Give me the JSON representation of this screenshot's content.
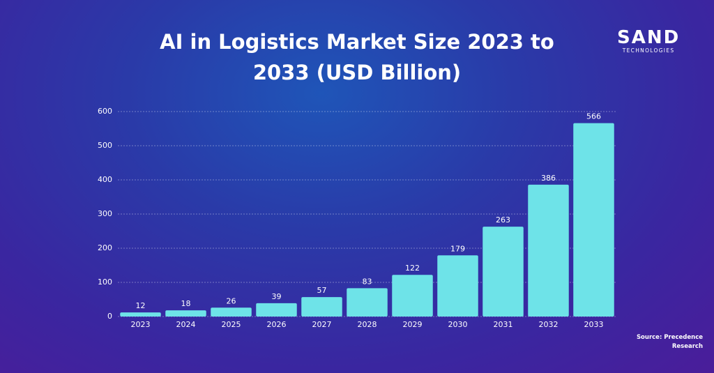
{
  "chart_data": {
    "type": "bar",
    "title": "AI in Logistics Market Size 2023 to 2033  (USD Billion)",
    "categories": [
      "2023",
      "2024",
      "2025",
      "2026",
      "2027",
      "2028",
      "2029",
      "2030",
      "2031",
      "2032",
      "2033"
    ],
    "values": [
      12,
      18,
      26,
      39,
      57,
      83,
      122,
      179,
      263,
      386,
      566
    ],
    "color": "#6ee3e8",
    "ylim": [
      0,
      600
    ],
    "yticks": [
      0,
      100,
      200,
      300,
      400,
      500,
      600
    ],
    "grid": true,
    "source": "Source: Precedence Research"
  },
  "logo": {
    "name": "SAND",
    "tagline": "TECHNOLOGIES"
  }
}
